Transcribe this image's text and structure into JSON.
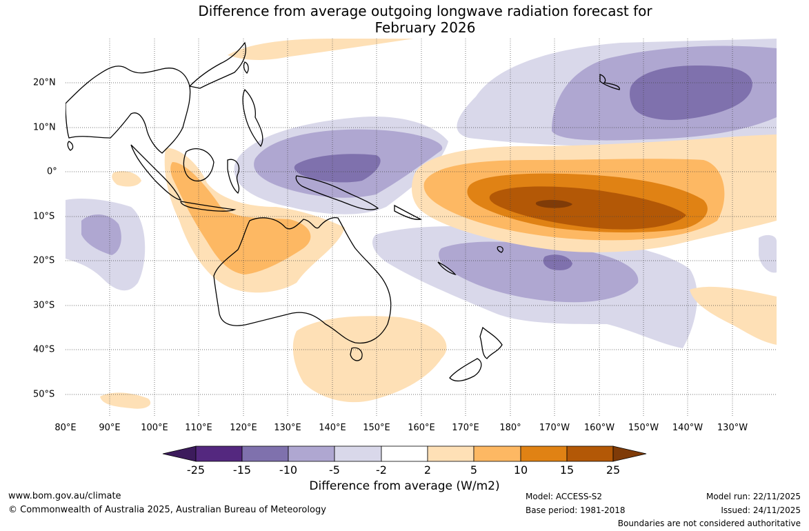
{
  "title": {
    "line1": "Difference from average outgoing longwave radiation forecast for",
    "line2": "February 2026"
  },
  "map": {
    "lon_labels": [
      "80°E",
      "90°E",
      "100°E",
      "110°E",
      "120°E",
      "130°E",
      "140°E",
      "150°E",
      "160°E",
      "170°E",
      "180°",
      "170°W",
      "160°W",
      "150°W",
      "140°W",
      "130°W"
    ],
    "lat_labels": [
      "20°N",
      "10°N",
      "0°",
      "10°S",
      "20°S",
      "30°S",
      "40°S",
      "50°S"
    ]
  },
  "legend": {
    "labels": [
      "-25",
      "-15",
      "-10",
      "-5",
      "-2",
      "2",
      "5",
      "10",
      "15",
      "25"
    ],
    "colors": {
      "below": "#3c1b5c",
      "bins": [
        "#54287f",
        "#7f71ad",
        "#afa7d1",
        "#d9d8ea",
        "#ffffff",
        "#fee0b6",
        "#fdb863",
        "#e08214",
        "#b35806"
      ],
      "above": "#7f3b08"
    },
    "title": "Difference from average (W/m2)"
  },
  "footer": {
    "website": "www.bom.gov.au/climate",
    "copyright": "© Commonwealth of Australia 2025, Australian Bureau of Meteorology",
    "model": "Model: ACCESS-S2",
    "base_period": "Base period: 1981-2018",
    "model_run": "Model run: 22/11/2025",
    "issued": "Issued: 24/11/2025",
    "disclaimer": "Boundaries are not considered authoritative"
  }
}
